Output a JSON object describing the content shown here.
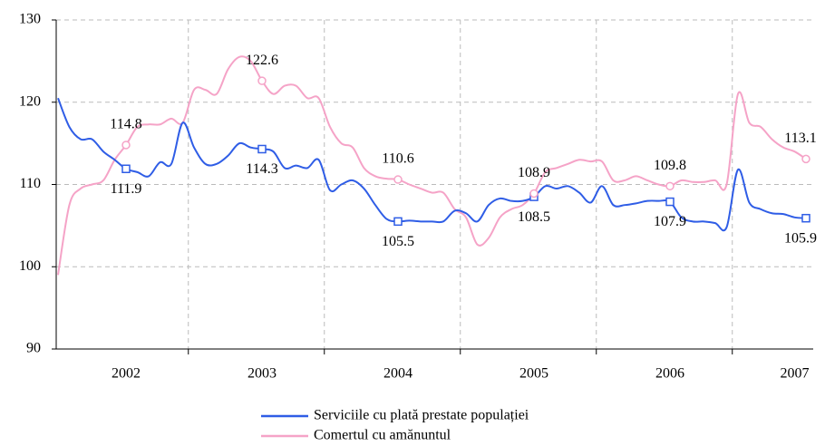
{
  "chart_data": {
    "type": "line",
    "categories": [
      null,
      null,
      null,
      null,
      null,
      null,
      "2002",
      null,
      null,
      null,
      null,
      null,
      null,
      null,
      null,
      null,
      null,
      null,
      "2003",
      null,
      null,
      null,
      null,
      null,
      null,
      null,
      null,
      null,
      null,
      null,
      "2004",
      null,
      null,
      null,
      null,
      null,
      null,
      null,
      null,
      null,
      null,
      null,
      "2005",
      null,
      null,
      null,
      null,
      null,
      null,
      null,
      null,
      null,
      null,
      null,
      "2006",
      null,
      null,
      null,
      null,
      null,
      null,
      null,
      null,
      null,
      null,
      "2007",
      null
    ],
    "ylim": [
      90,
      130
    ],
    "yticks": [
      90,
      100,
      110,
      120,
      130
    ],
    "grid": true,
    "series": [
      {
        "name": "Serviciile cu plată prestate populației",
        "color": "#2f5de6",
        "marker": "square",
        "values": [
          120.5,
          117,
          115.5,
          115.5,
          114,
          113,
          111.9,
          111.5,
          111,
          112.7,
          112.5,
          117.5,
          114.5,
          112.5,
          112.5,
          113.5,
          115,
          114.5,
          114.3,
          114,
          112,
          112.3,
          112,
          113,
          109.3,
          110,
          110.5,
          109.5,
          107.5,
          105.8,
          105.5,
          105.6,
          105.5,
          105.5,
          105.5,
          106.8,
          106.5,
          105.5,
          107.5,
          108.3,
          108,
          108,
          108.5,
          109.8,
          109.5,
          109.8,
          109,
          107.8,
          109.8,
          107.5,
          107.5,
          107.7,
          108,
          108,
          107.9,
          106,
          105.5,
          105.5,
          105.3,
          104.8,
          111.8,
          107.8,
          107,
          106.5,
          106.4,
          106,
          105.9
        ],
        "value_labels": [
          null,
          null,
          null,
          null,
          null,
          null,
          "111.9",
          null,
          null,
          null,
          null,
          null,
          null,
          null,
          null,
          null,
          null,
          null,
          "114.3",
          null,
          null,
          null,
          null,
          null,
          null,
          null,
          null,
          null,
          null,
          null,
          "105.5",
          null,
          null,
          null,
          null,
          null,
          null,
          null,
          null,
          null,
          null,
          null,
          "108.5",
          null,
          null,
          null,
          null,
          null,
          null,
          null,
          null,
          null,
          null,
          null,
          "107.9",
          null,
          null,
          null,
          null,
          null,
          null,
          null,
          null,
          null,
          null,
          null,
          "105.9"
        ]
      },
      {
        "name": "Comertul cu amănuntul",
        "color": "#f5a3c7",
        "marker": "circle",
        "values": [
          99,
          107.5,
          109.5,
          110,
          110.5,
          113,
          114.8,
          117,
          117.3,
          117.3,
          118,
          117.5,
          121.5,
          121.5,
          121,
          124,
          125.5,
          125,
          122.6,
          121,
          122,
          122,
          120.5,
          120.5,
          117,
          115,
          114.5,
          112,
          111,
          110.7,
          110.6,
          110,
          109.5,
          109,
          109,
          107,
          106,
          102.7,
          103.5,
          106,
          107,
          107.5,
          108.9,
          111.5,
          112,
          112.5,
          113,
          112.8,
          112.8,
          110.5,
          110.5,
          111,
          110.5,
          110,
          109.8,
          110.5,
          110.3,
          110.3,
          110.5,
          110,
          121,
          117.5,
          117,
          115.5,
          114.5,
          114,
          113.1
        ],
        "value_labels": [
          null,
          null,
          null,
          null,
          null,
          null,
          "114.8",
          null,
          null,
          null,
          null,
          null,
          null,
          null,
          null,
          null,
          null,
          null,
          "122.6",
          null,
          null,
          null,
          null,
          null,
          null,
          null,
          null,
          null,
          null,
          null,
          "110.6",
          null,
          null,
          null,
          null,
          null,
          null,
          null,
          null,
          null,
          null,
          null,
          "108.9",
          null,
          null,
          null,
          null,
          null,
          null,
          null,
          null,
          null,
          null,
          null,
          "109.8",
          null,
          null,
          null,
          null,
          null,
          null,
          null,
          null,
          null,
          null,
          null,
          "113.1"
        ]
      }
    ]
  }
}
